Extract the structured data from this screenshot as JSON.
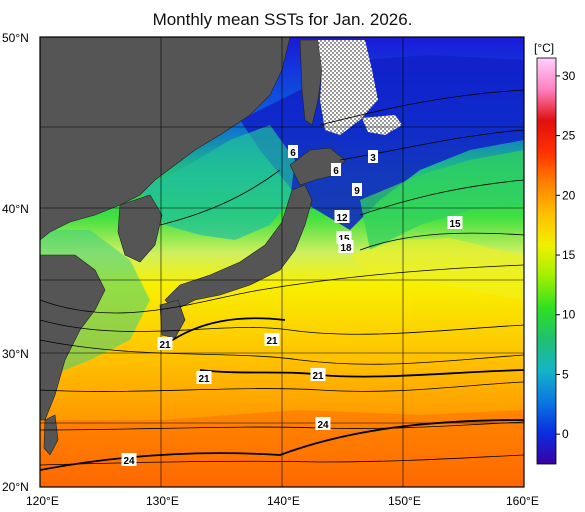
{
  "title": "Monthly mean SSTs for Jan. 2026.",
  "map": {
    "lon_range": [
      120,
      160
    ],
    "lat_range": [
      20,
      50
    ],
    "lon_ticks": [
      "120°E",
      "130°E",
      "140°E",
      "150°E",
      "160°E"
    ],
    "lat_ticks": [
      "50°N",
      "40°N",
      "30°N",
      "20°N"
    ],
    "land_color": "#555555",
    "contour_labels": [
      "3",
      "6",
      "6",
      "9",
      "12",
      "15",
      "15",
      "18",
      "21",
      "21",
      "21",
      "21",
      "24",
      "24"
    ]
  },
  "colorbar": {
    "unit": "[°C]",
    "ticks": [
      "0",
      "5",
      "10",
      "15",
      "20",
      "25",
      "30"
    ],
    "colors": [
      "#3a00a8",
      "#0a2ee0",
      "#0a78e0",
      "#14b4c8",
      "#20c070",
      "#30e020",
      "#a0f000",
      "#f0f000",
      "#ffc000",
      "#ff8000",
      "#ff3000",
      "#e01010",
      "#ff80c0",
      "#ffd0ff"
    ]
  }
}
